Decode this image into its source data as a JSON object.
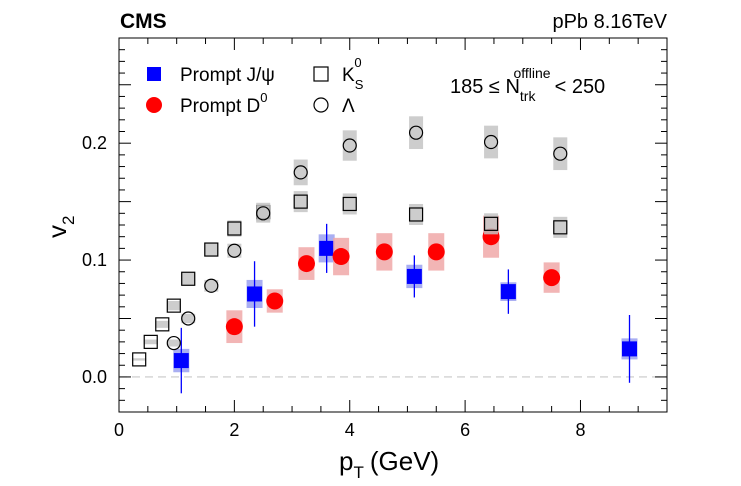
{
  "header": {
    "experiment": "CMS",
    "system": "pPb 8.16TeV",
    "selection_main": "185 ≤ N",
    "selection_sup": "offline",
    "selection_sub": "trk",
    "selection_tail": "< 250"
  },
  "chart_data": {
    "type": "scatter",
    "xlabel": "p",
    "xlabel_sub": "T",
    "xlabel_unit": "(GeV)",
    "ylabel": "v",
    "ylabel_sub": "2",
    "xlim": [
      0,
      9.5
    ],
    "ylim": [
      -0.03,
      0.29
    ],
    "x_ticks": [
      0,
      2,
      4,
      6,
      8
    ],
    "x_tick_labels": [
      "0",
      "2",
      "4",
      "6",
      "8"
    ],
    "y_ticks": [
      0.0,
      0.1,
      0.2
    ],
    "y_tick_labels": [
      "0.0",
      "0.1",
      "0.2"
    ],
    "zero_line": true,
    "legend_position": "top-left",
    "series": [
      {
        "name": "Prompt J/ψ",
        "marker": "filled-square",
        "color": "#0000ff",
        "box_color": "#9aa0f0",
        "points": [
          {
            "x": 1.08,
            "y": 0.014,
            "stat": 0.028,
            "sys": 0.01
          },
          {
            "x": 2.35,
            "y": 0.071,
            "stat": 0.028,
            "sys": 0.012
          },
          {
            "x": 3.6,
            "y": 0.11,
            "stat": 0.021,
            "sys": 0.012
          },
          {
            "x": 5.12,
            "y": 0.086,
            "stat": 0.018,
            "sys": 0.01
          },
          {
            "x": 6.75,
            "y": 0.073,
            "stat": 0.019,
            "sys": 0.008
          },
          {
            "x": 8.85,
            "y": 0.024,
            "stat": 0.029,
            "sys": 0.009
          }
        ]
      },
      {
        "name": "Prompt D",
        "name_sup": "0",
        "marker": "filled-circle",
        "color": "#ff0000",
        "box_color": "#f0a8a8",
        "points": [
          {
            "x": 2.0,
            "y": 0.043,
            "stat": 0.004,
            "sys": 0.014
          },
          {
            "x": 2.7,
            "y": 0.065,
            "stat": 0.004,
            "sys": 0.01
          },
          {
            "x": 3.25,
            "y": 0.097,
            "stat": 0.004,
            "sys": 0.014
          },
          {
            "x": 3.85,
            "y": 0.103,
            "stat": 0.004,
            "sys": 0.016
          },
          {
            "x": 4.6,
            "y": 0.107,
            "stat": 0.004,
            "sys": 0.016
          },
          {
            "x": 5.5,
            "y": 0.107,
            "stat": 0.004,
            "sys": 0.016
          },
          {
            "x": 6.45,
            "y": 0.12,
            "stat": 0.004,
            "sys": 0.018
          },
          {
            "x": 7.5,
            "y": 0.085,
            "stat": 0.004,
            "sys": 0.013
          }
        ]
      },
      {
        "name": "K",
        "name_sub": "S",
        "name_sup": "0",
        "marker": "open-square",
        "color": "#000000",
        "box_color": "#c4c4c4",
        "points": [
          {
            "x": 0.35,
            "y": 0.015,
            "sys": 0.001
          },
          {
            "x": 0.55,
            "y": 0.03,
            "sys": 0.002
          },
          {
            "x": 0.75,
            "y": 0.045,
            "sys": 0.003
          },
          {
            "x": 0.95,
            "y": 0.061,
            "sys": 0.004
          },
          {
            "x": 1.2,
            "y": 0.084,
            "sys": 0.005
          },
          {
            "x": 1.6,
            "y": 0.109,
            "sys": 0.006
          },
          {
            "x": 2.0,
            "y": 0.127,
            "sys": 0.007
          },
          {
            "x": 2.5,
            "y": 0.141,
            "sys": 0.008
          },
          {
            "x": 3.15,
            "y": 0.15,
            "sys": 0.009
          },
          {
            "x": 4.0,
            "y": 0.148,
            "sys": 0.009
          },
          {
            "x": 5.15,
            "y": 0.139,
            "sys": 0.009
          },
          {
            "x": 6.45,
            "y": 0.131,
            "sys": 0.009
          },
          {
            "x": 7.65,
            "y": 0.128,
            "sys": 0.009
          }
        ]
      },
      {
        "name": "Λ",
        "marker": "open-circle",
        "color": "#000000",
        "box_color": "#c4c4c4",
        "points": [
          {
            "x": 0.95,
            "y": 0.029,
            "sys": 0.003
          },
          {
            "x": 1.2,
            "y": 0.05,
            "sys": 0.004
          },
          {
            "x": 1.6,
            "y": 0.078,
            "sys": 0.005
          },
          {
            "x": 2.0,
            "y": 0.108,
            "sys": 0.006
          },
          {
            "x": 2.5,
            "y": 0.14,
            "sys": 0.008
          },
          {
            "x": 3.15,
            "y": 0.175,
            "sys": 0.011
          },
          {
            "x": 4.0,
            "y": 0.198,
            "sys": 0.013
          },
          {
            "x": 5.15,
            "y": 0.209,
            "sys": 0.014
          },
          {
            "x": 6.45,
            "y": 0.201,
            "sys": 0.014
          },
          {
            "x": 7.65,
            "y": 0.191,
            "sys": 0.014
          }
        ]
      }
    ]
  }
}
